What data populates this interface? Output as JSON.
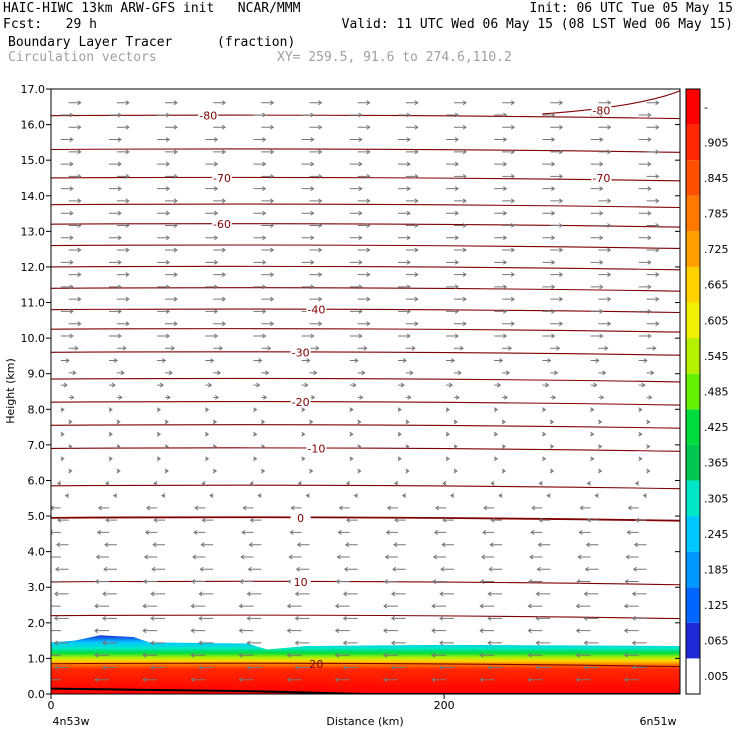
{
  "header": {
    "title_left": "HAIC-HIWC 13km ARW-GFS init   NCAR/MMM",
    "init": "Init: 06 UTC Tue 05 May 15",
    "fcst": "Fcst:   29 h",
    "valid": "Valid: 11 UTC Wed 06 May 15 (08 LST Wed 06 May 15)",
    "field_name": "Boundary Layer Tracer",
    "field_units": "(fraction)",
    "vector_name": "Circulation vectors",
    "xy_text": "XY= 259.5, 91.6 to 274.6,110.2"
  },
  "chart_data": {
    "type": "heatmap",
    "xlabel": "Distance (km)",
    "ylabel": "Height (km)",
    "xlim": [
      0,
      320
    ],
    "ylim": [
      0,
      17
    ],
    "x_ticks": [
      0,
      200
    ],
    "x_tick_labels": [
      "0",
      "200"
    ],
    "x_end_labels": [
      "4n53w",
      "6n51w"
    ],
    "y_ticks": [
      "0.0",
      "1.0",
      "2.0",
      "3.0",
      "4.0",
      "5.0",
      "6.0",
      "7.0",
      "8.0",
      "9.0",
      "10.0",
      "11.0",
      "12.0",
      "13.0",
      "14.0",
      "15.0",
      "16.0",
      "17.0"
    ],
    "colorbar_labels": [
      ".005",
      ".065",
      ".125",
      ".185",
      ".245",
      ".305",
      ".365",
      ".425",
      ".485",
      ".545",
      ".605",
      ".665",
      ".725",
      ".785",
      ".845",
      ".905",
      "-"
    ],
    "colorbar_colors": [
      "#ffffff",
      "#1e2ad8",
      "#0066ff",
      "#0099ff",
      "#00c8ff",
      "#00e6c8",
      "#00c850",
      "#00dc3c",
      "#64f000",
      "#b4f000",
      "#f0f000",
      "#ffd200",
      "#ffa000",
      "#ff7800",
      "#ff5000",
      "#ff2800",
      "#ff0000"
    ],
    "contour_color": "#800000",
    "temperature_contour_labels": [
      {
        "text": "-80",
        "x": 80,
        "y": 16.25
      },
      {
        "text": "-80",
        "x": 280,
        "y": 16.4
      },
      {
        "text": "-70",
        "x": 87,
        "y": 14.5
      },
      {
        "text": "-70",
        "x": 280,
        "y": 14.5
      },
      {
        "text": "-60",
        "x": 87,
        "y": 13.2
      },
      {
        "text": "-40",
        "x": 135,
        "y": 10.8
      },
      {
        "text": "-30",
        "x": 127,
        "y": 9.6
      },
      {
        "text": "-20",
        "x": 127,
        "y": 8.2
      },
      {
        "text": "-10",
        "x": 135,
        "y": 6.9
      },
      {
        "text": "0",
        "x": 127,
        "y": 4.95
      },
      {
        "text": "10",
        "x": 127,
        "y": 3.15
      },
      {
        "text": "20",
        "x": 135,
        "y": 0.85
      }
    ],
    "boundary_layer_top_km": [
      [
        0,
        1.45
      ],
      [
        12,
        1.5
      ],
      [
        25,
        1.65
      ],
      [
        42,
        1.6
      ],
      [
        50,
        1.45
      ],
      [
        100,
        1.42
      ],
      [
        110,
        1.25
      ],
      [
        130,
        1.35
      ],
      [
        200,
        1.38
      ],
      [
        320,
        1.35
      ]
    ],
    "terrain_km": [
      [
        0,
        0.15
      ],
      [
        100,
        0.08
      ],
      [
        160,
        0.0
      ],
      [
        320,
        0.0
      ]
    ],
    "wind_note": "upper levels westerly (right-pointing), lower levels easterly (left-pointing)"
  }
}
